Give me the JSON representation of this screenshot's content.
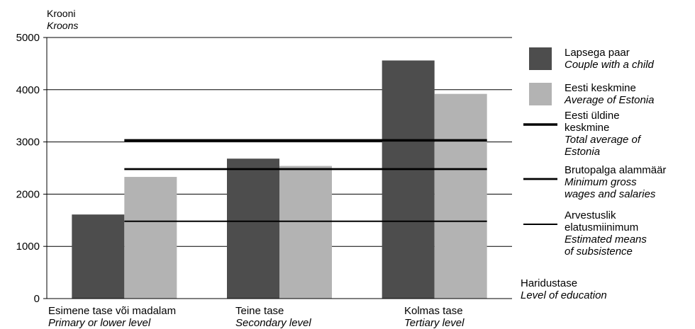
{
  "chart_data": {
    "type": "bar",
    "ylabel": [
      "Krooni",
      "Kroons"
    ],
    "xlabel": [
      "Haridustase",
      "Level of education"
    ],
    "ylim": [
      0,
      5000
    ],
    "yticks": [
      0,
      1000,
      2000,
      3000,
      4000,
      5000
    ],
    "grid": "horizontal",
    "legend_position": "right",
    "categories": [
      {
        "et": "Esimene tase või madalam",
        "en": "Primary or lower level"
      },
      {
        "et": "Teine tase",
        "en": "Secondary level"
      },
      {
        "et": "Kolmas tase",
        "en": "Tertiary level"
      }
    ],
    "series": [
      {
        "name": "Lapsega paar",
        "name_en": "Couple with a child",
        "color": "#4d4d4d",
        "values": [
          1610,
          2680,
          4560
        ]
      },
      {
        "name": "Eesti keskmine",
        "name_en": "Average of Estonia",
        "color": "#b3b3b3",
        "values": [
          2330,
          2540,
          3920
        ]
      }
    ],
    "reference_lines": [
      {
        "name": "Eesti üldine keskmine",
        "name_en": "Total average of Estonia",
        "value": 3030,
        "weight": "thick",
        "legend": [
          "Eesti üldine",
          "keskmine",
          "Total average of",
          "Estonia"
        ]
      },
      {
        "name": "Brutopalga alammäär",
        "name_en": "Minimum gross wages and salaries",
        "value": 2480,
        "weight": "medium",
        "legend": [
          "Brutopalga alammäär",
          "Minimum gross",
          "wages and salaries"
        ]
      },
      {
        "name": "Arvestuslik elatusmiinimum",
        "name_en": "Estimated means of subsistence",
        "value": 1480,
        "weight": "thin",
        "legend": [
          "Arvestuslik",
          "elatusmiinimum",
          "Estimated means",
          "of subsistence"
        ]
      }
    ]
  }
}
